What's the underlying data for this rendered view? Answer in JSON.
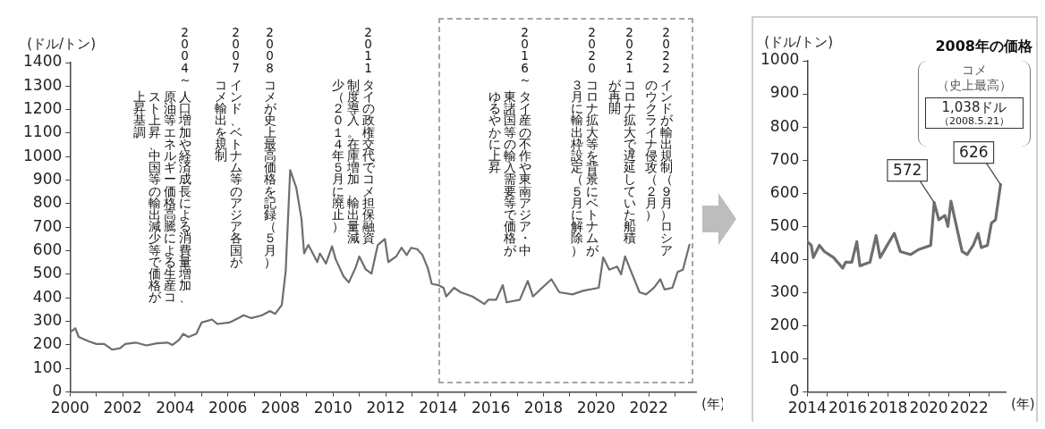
{
  "chart_data": [
    {
      "type": "line",
      "ylabel": "(ドル/トン)",
      "xlabel": "(年)",
      "xlim": [
        2000,
        2023.8
      ],
      "xticks": [
        2000,
        {
          "value": 2001,
          "label": null
        },
        2002,
        {
          "value": 2003,
          "label": null
        },
        2004,
        {
          "value": 2005,
          "label": null
        },
        2006,
        {
          "value": 2007,
          "label": null
        },
        2008,
        {
          "value": 2009,
          "label": null
        },
        2010,
        {
          "value": 2011,
          "label": null
        },
        2012,
        {
          "value": 2013,
          "label": null
        },
        2014,
        {
          "value": 2015,
          "label": null
        },
        2016,
        {
          "value": 2017,
          "label": null
        },
        2018,
        {
          "value": 2019,
          "label": null
        },
        2020,
        {
          "value": 2021,
          "label": null
        },
        2022,
        {
          "value": 2023,
          "label": null
        }
      ],
      "ylim": [
        0,
        1400
      ],
      "yticks": [
        0,
        100,
        200,
        300,
        400,
        500,
        600,
        700,
        800,
        900,
        1000,
        1100,
        1200,
        1300,
        1400
      ],
      "series": [
        {
          "color": "#6e6e6e",
          "x": [
            2000,
            2000.2,
            2000.33,
            2000.7,
            2001,
            2001.3,
            2001.6,
            2001.9,
            2002.1,
            2002.5,
            2002.9,
            2003.3,
            2003.7,
            2003.9,
            2004.15,
            2004.3,
            2004.5,
            2004.8,
            2005,
            2005.4,
            2005.6,
            2006.05,
            2006.4,
            2006.6,
            2006.9,
            2007.3,
            2007.6,
            2007.8,
            2008.05,
            2008.2,
            2008.37,
            2008.6,
            2008.8,
            2008.9,
            2009.06,
            2009.23,
            2009.4,
            2009.5,
            2009.73,
            2009.96,
            2010.1,
            2010.4,
            2010.6,
            2010.85,
            2011,
            2011.24,
            2011.46,
            2011.7,
            2011.97,
            2012.1,
            2012.4,
            2012.6,
            2012.8,
            2012.97,
            2013.2,
            2013.4,
            2013.6,
            2013.75,
            2014,
            2014.2,
            2014.3,
            2014.6,
            2014.85,
            2015.3,
            2015.75,
            2015.9,
            2016.2,
            2016.45,
            2016.6,
            2017.1,
            2017.4,
            2017.6,
            2017.95,
            2018.3,
            2018.6,
            2019.1,
            2019.5,
            2020.1,
            2020.27,
            2020.5,
            2020.8,
            2020.95,
            2021.1,
            2021.3,
            2021.65,
            2021.9,
            2022.2,
            2022.44,
            2022.6,
            2022.9,
            2023.1,
            2023.3,
            2023.55
          ],
          "values": [
            253,
            271,
            234,
            216,
            204,
            204,
            180,
            186,
            204,
            210,
            198,
            207,
            210,
            200,
            222,
            247,
            234,
            247,
            295,
            308,
            289,
            295,
            314,
            326,
            314,
            326,
            344,
            332,
            369,
            515,
            943,
            869,
            735,
            589,
            625,
            589,
            552,
            589,
            546,
            619,
            564,
            491,
            466,
            527,
            576,
            521,
            503,
            625,
            650,
            552,
            576,
            613,
            582,
            613,
            607,
            582,
            527,
            460,
            454,
            443,
            406,
            443,
            424,
            406,
            374,
            392,
            392,
            454,
            381,
            392,
            472,
            406,
            443,
            479,
            424,
            415,
            430,
            443,
            572,
            520,
            533,
            500,
            576,
            520,
            424,
            415,
            443,
            479,
            436,
            443,
            510,
            520,
            626
          ]
        }
      ],
      "annotations": [
        "2004～",
        "人口増加や経済成長による消費量増加、原油等エネルギー価格高騰による生産コスト上昇、中国等の輸出減少等で価格が上昇基調",
        "2007",
        "インド、ベトナム等のアジア各国がコメ輸出を規制",
        "2008",
        "コメが史上最高価格を記録（５月）",
        "2011",
        "タイの政権交代でコメ担保融資制度導入。在庫増加、輸出量減少（２０１４年５月に廃止）",
        "2016～",
        "タイ産の不作や東南アジア・中東諸国等の輸入需要等で価格がゆるやかに上昇",
        "2020",
        "コロナ拡大等を背景にベトナムが３月に輸出枠設定（５月に解除）",
        "2021",
        "コロナ拡大で遅延していた船積が再開",
        "2022",
        "インドが輸出規制（９月）ロシアのウクライナ侵攻（２月）"
      ]
    },
    {
      "type": "line",
      "ylabel": "(ドル/トン)",
      "xlabel": "(年)",
      "xlim": [
        2014,
        2023.8
      ],
      "xticks": [
        2014,
        {
          "value": 2015,
          "label": null
        },
        2016,
        {
          "value": 2017,
          "label": null
        },
        2018,
        {
          "value": 2019,
          "label": null
        },
        2020,
        {
          "value": 2021,
          "label": null
        },
        2022,
        {
          "value": 2023,
          "label": null
        }
      ],
      "ylim": [
        0,
        1000
      ],
      "yticks": [
        0,
        100,
        200,
        300,
        400,
        500,
        600,
        700,
        800,
        900,
        1000
      ],
      "series": [
        {
          "color": "#6e6e6e",
          "x": [
            2014,
            2014.2,
            2014.3,
            2014.6,
            2014.85,
            2015.3,
            2015.75,
            2015.9,
            2016.2,
            2016.45,
            2016.6,
            2017.1,
            2017.4,
            2017.6,
            2017.95,
            2018.3,
            2018.6,
            2019.1,
            2019.5,
            2020.1,
            2020.27,
            2020.5,
            2020.8,
            2020.95,
            2021.1,
            2021.3,
            2021.65,
            2021.9,
            2022.2,
            2022.44,
            2022.6,
            2022.9,
            2023.1,
            2023.3,
            2023.55
          ],
          "values": [
            454,
            443,
            406,
            443,
            424,
            406,
            374,
            392,
            392,
            454,
            381,
            392,
            472,
            406,
            443,
            479,
            424,
            415,
            430,
            443,
            572,
            520,
            533,
            500,
            576,
            520,
            424,
            415,
            443,
            479,
            436,
            443,
            510,
            520,
            626
          ]
        }
      ],
      "annotations": [
        "2008年の価格",
        "コメ",
        "（史上最高）",
        "1,038ドル",
        "（2008.5.21）",
        {
          "text": "572",
          "x": 2020.27,
          "y": 572
        },
        {
          "text": "626",
          "x": 2023.55,
          "y": 626
        }
      ]
    }
  ]
}
